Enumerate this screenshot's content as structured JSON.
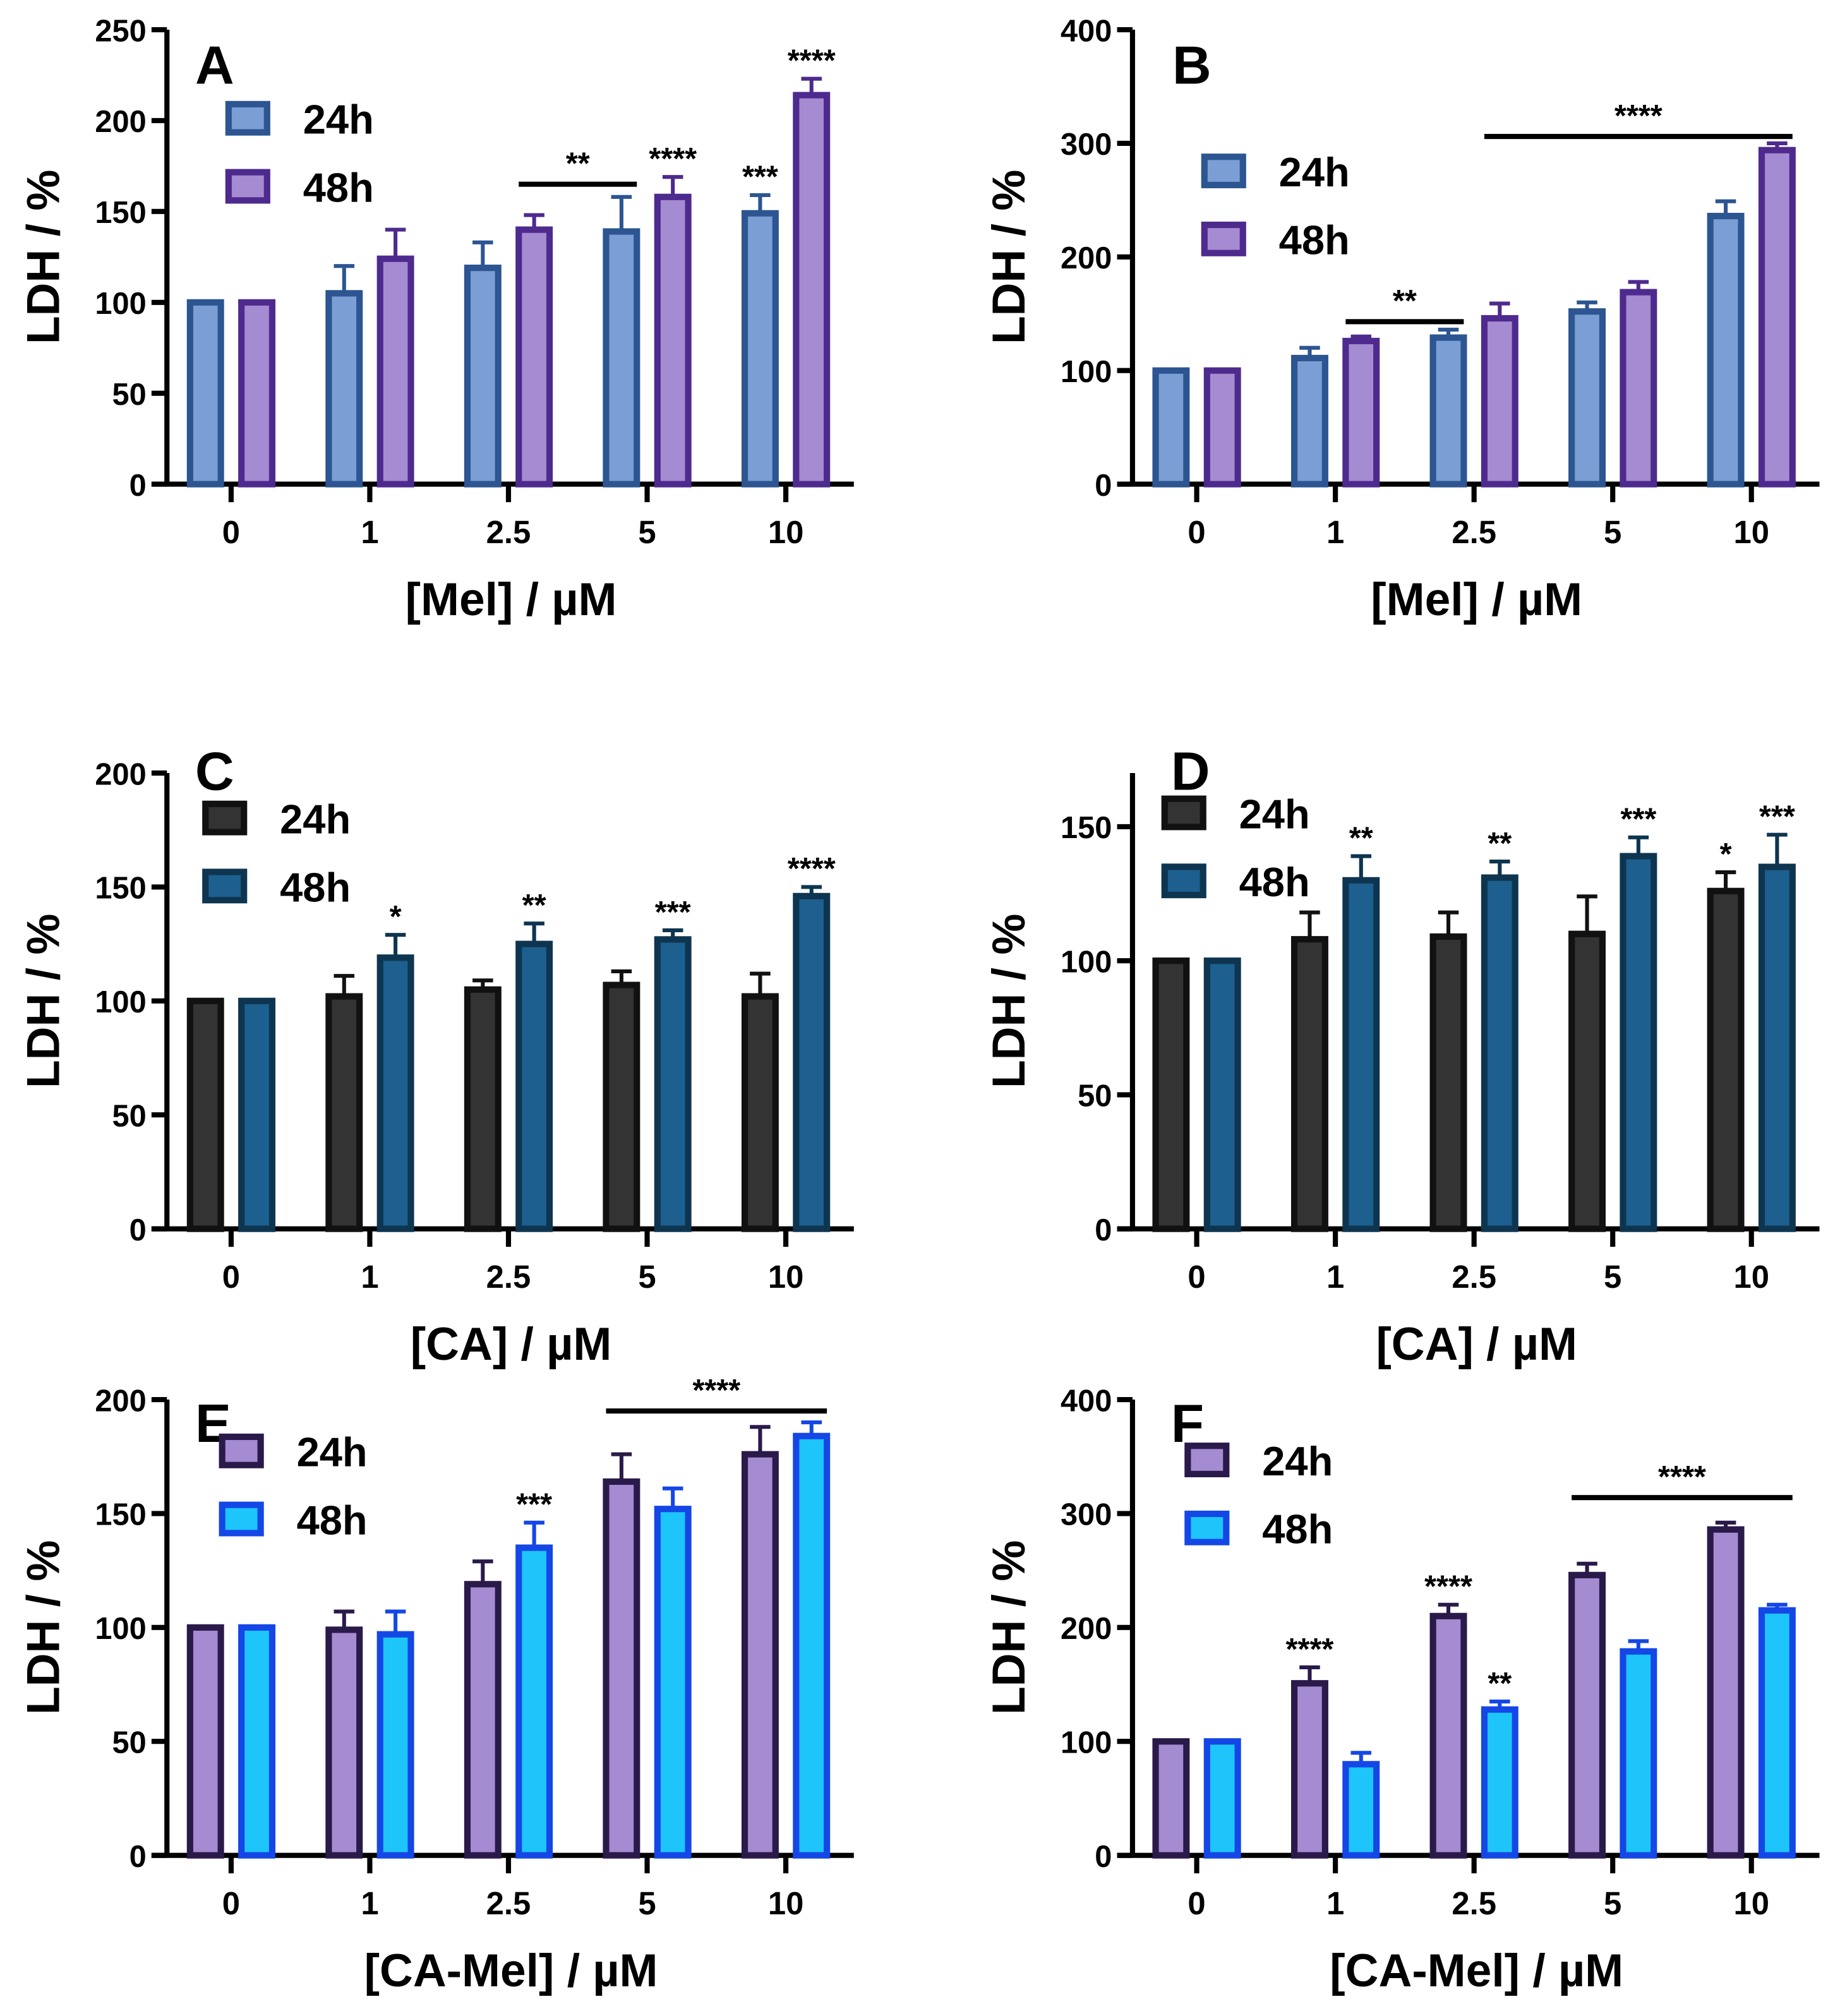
{
  "chart_data": [
    {
      "panel": "A",
      "type": "bar",
      "ylabel": "LDH / %",
      "xlabel": "[Mel] / µM",
      "categories": [
        "0",
        "1",
        "2.5",
        "5",
        "10"
      ],
      "ylim": [
        0,
        250
      ],
      "yticks": [
        0,
        50,
        100,
        150,
        200,
        250
      ],
      "series": [
        {
          "name": "24h",
          "fill": "#7b9fd4",
          "stroke": "#2c5591",
          "values": [
            100,
            105,
            119,
            139,
            149
          ],
          "errors": [
            0,
            15,
            14,
            19,
            10
          ]
        },
        {
          "name": "48h",
          "fill": "#a58bd1",
          "stroke": "#4e2a8e",
          "values": [
            100,
            124,
            140,
            158,
            214
          ],
          "errors": [
            0,
            16,
            8,
            11,
            9
          ]
        }
      ],
      "annotations": [
        {
          "text": "**",
          "from": [
            2,
            1
          ],
          "to": [
            3,
            0
          ],
          "level": 165
        },
        {
          "text": "****",
          "at": [
            3,
            1
          ]
        },
        {
          "text": "***",
          "at": [
            4,
            0
          ]
        },
        {
          "text": "****",
          "at": [
            4,
            1
          ]
        }
      ]
    },
    {
      "panel": "B",
      "type": "bar",
      "ylabel": "LDH / %",
      "xlabel": "[Mel] / µM",
      "categories": [
        "0",
        "1",
        "2.5",
        "5",
        "10"
      ],
      "ylim": [
        0,
        400
      ],
      "yticks": [
        0,
        100,
        200,
        300,
        400
      ],
      "series": [
        {
          "name": "24h",
          "fill": "#7b9fd4",
          "stroke": "#2c5591",
          "values": [
            100,
            111,
            129,
            152,
            236
          ],
          "errors": [
            0,
            9,
            7,
            8,
            13
          ]
        },
        {
          "name": "48h",
          "fill": "#a58bd1",
          "stroke": "#4e2a8e",
          "values": [
            100,
            126,
            146,
            169,
            294
          ],
          "errors": [
            0,
            4,
            13,
            9,
            6
          ]
        }
      ],
      "annotations": [
        {
          "text": "**",
          "from": [
            1,
            1
          ],
          "to": [
            2,
            0
          ],
          "level": 143
        },
        {
          "text": "****",
          "from": [
            2,
            1
          ],
          "to": [
            4,
            1
          ],
          "level": 306
        }
      ]
    },
    {
      "panel": "C",
      "type": "bar",
      "ylabel": "LDH / %",
      "xlabel": "[CA] / µM",
      "categories": [
        "0",
        "1",
        "2.5",
        "5",
        "10"
      ],
      "ylim": [
        0,
        200
      ],
      "yticks": [
        0,
        50,
        100,
        150,
        200
      ],
      "series": [
        {
          "name": "24h",
          "fill": "#333333",
          "stroke": "#111111",
          "values": [
            100,
            102,
            105,
            107,
            102
          ],
          "errors": [
            0,
            9,
            4,
            6,
            10
          ]
        },
        {
          "name": "48h",
          "fill": "#1d5f8e",
          "stroke": "#0e3550",
          "values": [
            100,
            119,
            125,
            127,
            146
          ],
          "errors": [
            0,
            10,
            9,
            4,
            4
          ]
        }
      ],
      "annotations": [
        {
          "text": "*",
          "at": [
            1,
            1
          ]
        },
        {
          "text": "**",
          "at": [
            2,
            1
          ]
        },
        {
          "text": "***",
          "at": [
            3,
            1
          ]
        },
        {
          "text": "****",
          "at": [
            4,
            1
          ]
        }
      ]
    },
    {
      "panel": "D",
      "type": "bar",
      "ylabel": "LDH / %",
      "xlabel": "[CA] / µM",
      "categories": [
        "0",
        "1",
        "2.5",
        "5",
        "10"
      ],
      "ylim": [
        0,
        170
      ],
      "yticks": [
        0,
        50,
        100,
        150
      ],
      "series": [
        {
          "name": "24h",
          "fill": "#333333",
          "stroke": "#111111",
          "values": [
            100,
            108,
            109,
            110,
            126
          ],
          "errors": [
            0,
            10,
            9,
            14,
            7
          ]
        },
        {
          "name": "48h",
          "fill": "#1d5f8e",
          "stroke": "#0e3550",
          "values": [
            100,
            130,
            131,
            139,
            135
          ],
          "errors": [
            0,
            9,
            6,
            7,
            12
          ]
        }
      ],
      "annotations": [
        {
          "text": "**",
          "at": [
            1,
            1
          ]
        },
        {
          "text": "**",
          "at": [
            2,
            1
          ]
        },
        {
          "text": "***",
          "at": [
            3,
            1
          ]
        },
        {
          "text": "*",
          "at": [
            4,
            0
          ]
        },
        {
          "text": "***",
          "at": [
            4,
            1
          ]
        }
      ]
    },
    {
      "panel": "E",
      "type": "bar",
      "ylabel": "LDH / %",
      "xlabel": "[CA-Mel] / µM",
      "categories": [
        "0",
        "1",
        "2.5",
        "5",
        "10"
      ],
      "ylim": [
        0,
        200
      ],
      "yticks": [
        0,
        50,
        100,
        150,
        200
      ],
      "series": [
        {
          "name": "24h",
          "fill": "#a58bd1",
          "stroke": "#2a1a4a",
          "values": [
            100,
            99,
            119,
            164,
            176
          ],
          "errors": [
            0,
            8,
            10,
            12,
            12
          ]
        },
        {
          "name": "48h",
          "fill": "#1ec5fb",
          "stroke": "#1447e6",
          "values": [
            100,
            97,
            135,
            152,
            184
          ],
          "errors": [
            0,
            10,
            11,
            9,
            6
          ]
        }
      ],
      "annotations": [
        {
          "text": "***",
          "at": [
            2,
            1
          ]
        },
        {
          "text": "****",
          "from": [
            3,
            0
          ],
          "to": [
            4,
            1
          ],
          "level": 195
        }
      ]
    },
    {
      "panel": "F",
      "type": "bar",
      "ylabel": "LDH / %",
      "xlabel": "[CA-Mel] / µM",
      "categories": [
        "0",
        "1",
        "2.5",
        "5",
        "10"
      ],
      "ylim": [
        0,
        400
      ],
      "yticks": [
        0,
        100,
        200,
        300,
        400
      ],
      "series": [
        {
          "name": "24h",
          "fill": "#a58bd1",
          "stroke": "#2a1a4a",
          "values": [
            100,
            151,
            210,
            246,
            286
          ],
          "errors": [
            0,
            14,
            10,
            10,
            6
          ]
        },
        {
          "name": "48h",
          "fill": "#1ec5fb",
          "stroke": "#1447e6",
          "values": [
            100,
            80,
            128,
            179,
            215
          ],
          "errors": [
            0,
            10,
            7,
            9,
            5
          ]
        }
      ],
      "annotations": [
        {
          "text": "****",
          "at": [
            1,
            0
          ]
        },
        {
          "text": "****",
          "at": [
            2,
            0
          ]
        },
        {
          "text": "**",
          "at": [
            2,
            1
          ]
        },
        {
          "text": "****",
          "from": [
            3,
            0
          ],
          "to": [
            4,
            1
          ],
          "level": 314
        }
      ]
    }
  ]
}
